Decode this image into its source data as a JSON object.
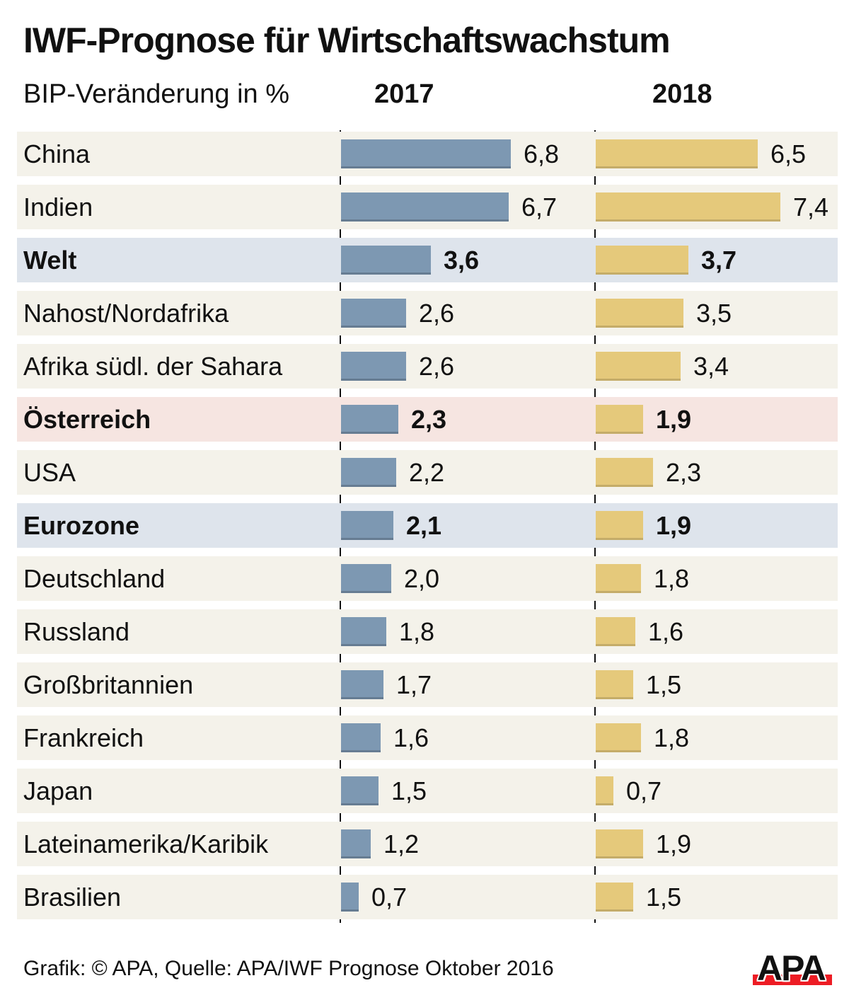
{
  "page": {
    "title": "IWF-Prognose für Wirtschaftswachstum",
    "subtitle": "BIP-Veränderung in %",
    "col_2017": "2017",
    "col_2018": "2018",
    "footer": "Grafik: © APA, Quelle: APA/IWF Prognose Oktober 2016",
    "logo_text": "APA"
  },
  "colors": {
    "bar_2017": "#7d98b2",
    "bar_2018": "#e5c97b",
    "row_default": "#f4f2ea",
    "row_blue": "#dee4ec",
    "row_pink": "#f6e5e1",
    "logo_red": "#ed1c24",
    "text": "#111111"
  },
  "chart_data": {
    "type": "bar",
    "orientation": "horizontal",
    "title": "IWF-Prognose für Wirtschaftswachstum",
    "subtitle": "BIP-Veränderung in %",
    "unit": "BIP-Veränderung in %",
    "decimal_separator": ",",
    "value_range": [
      0,
      7.4
    ],
    "grid": false,
    "legend_position": "column headers above chart",
    "categories": [
      "China",
      "Indien",
      "Welt",
      "Nahost/Nordafrika",
      "Afrika südl. der Sahara",
      "Österreich",
      "USA",
      "Eurozone",
      "Deutschland",
      "Russland",
      "Großbritannien",
      "Frankreich",
      "Japan",
      "Lateinamerika/Karibik",
      "Brasilien"
    ],
    "series": [
      {
        "name": "2017",
        "values": [
          6.8,
          6.7,
          3.6,
          2.6,
          2.6,
          2.3,
          2.2,
          2.1,
          2.0,
          1.8,
          1.7,
          1.6,
          1.5,
          1.2,
          0.7
        ]
      },
      {
        "name": "2018",
        "values": [
          6.5,
          7.4,
          3.7,
          3.5,
          3.4,
          1.9,
          2.3,
          1.9,
          1.8,
          1.6,
          1.5,
          1.8,
          0.7,
          1.9,
          1.5
        ]
      }
    ],
    "highlighted_rows": {
      "blue": [
        "Welt",
        "Eurozone"
      ],
      "pink": [
        "Österreich"
      ]
    }
  },
  "rows": [
    {
      "label": "China",
      "v2017": "6,8",
      "n2017": 6.8,
      "v2018": "6,5",
      "n2018": 6.5,
      "highlight": "none"
    },
    {
      "label": "Indien",
      "v2017": "6,7",
      "n2017": 6.7,
      "v2018": "7,4",
      "n2018": 7.4,
      "highlight": "none"
    },
    {
      "label": "Welt",
      "v2017": "3,6",
      "n2017": 3.6,
      "v2018": "3,7",
      "n2018": 3.7,
      "highlight": "blue"
    },
    {
      "label": "Nahost/Nordafrika",
      "v2017": "2,6",
      "n2017": 2.6,
      "v2018": "3,5",
      "n2018": 3.5,
      "highlight": "none"
    },
    {
      "label": "Afrika südl. der Sahara",
      "v2017": "2,6",
      "n2017": 2.6,
      "v2018": "3,4",
      "n2018": 3.4,
      "highlight": "none"
    },
    {
      "label": "Österreich",
      "v2017": "2,3",
      "n2017": 2.3,
      "v2018": "1,9",
      "n2018": 1.9,
      "highlight": "pink"
    },
    {
      "label": "USA",
      "v2017": "2,2",
      "n2017": 2.2,
      "v2018": "2,3",
      "n2018": 2.3,
      "highlight": "none"
    },
    {
      "label": "Eurozone",
      "v2017": "2,1",
      "n2017": 2.1,
      "v2018": "1,9",
      "n2018": 1.9,
      "highlight": "blue"
    },
    {
      "label": "Deutschland",
      "v2017": "2,0",
      "n2017": 2.0,
      "v2018": "1,8",
      "n2018": 1.8,
      "highlight": "none"
    },
    {
      "label": "Russland",
      "v2017": "1,8",
      "n2017": 1.8,
      "v2018": "1,6",
      "n2018": 1.6,
      "highlight": "none"
    },
    {
      "label": "Großbritannien",
      "v2017": "1,7",
      "n2017": 1.7,
      "v2018": "1,5",
      "n2018": 1.5,
      "highlight": "none"
    },
    {
      "label": "Frankreich",
      "v2017": "1,6",
      "n2017": 1.6,
      "v2018": "1,8",
      "n2018": 1.8,
      "highlight": "none"
    },
    {
      "label": "Japan",
      "v2017": "1,5",
      "n2017": 1.5,
      "v2018": "0,7",
      "n2018": 0.7,
      "highlight": "none"
    },
    {
      "label": "Lateinamerika/Karibik",
      "v2017": "1,2",
      "n2017": 1.2,
      "v2018": "1,9",
      "n2018": 1.9,
      "highlight": "none"
    },
    {
      "label": "Brasilien",
      "v2017": "0,7",
      "n2017": 0.7,
      "v2018": "1,5",
      "n2018": 1.5,
      "highlight": "none"
    }
  ]
}
